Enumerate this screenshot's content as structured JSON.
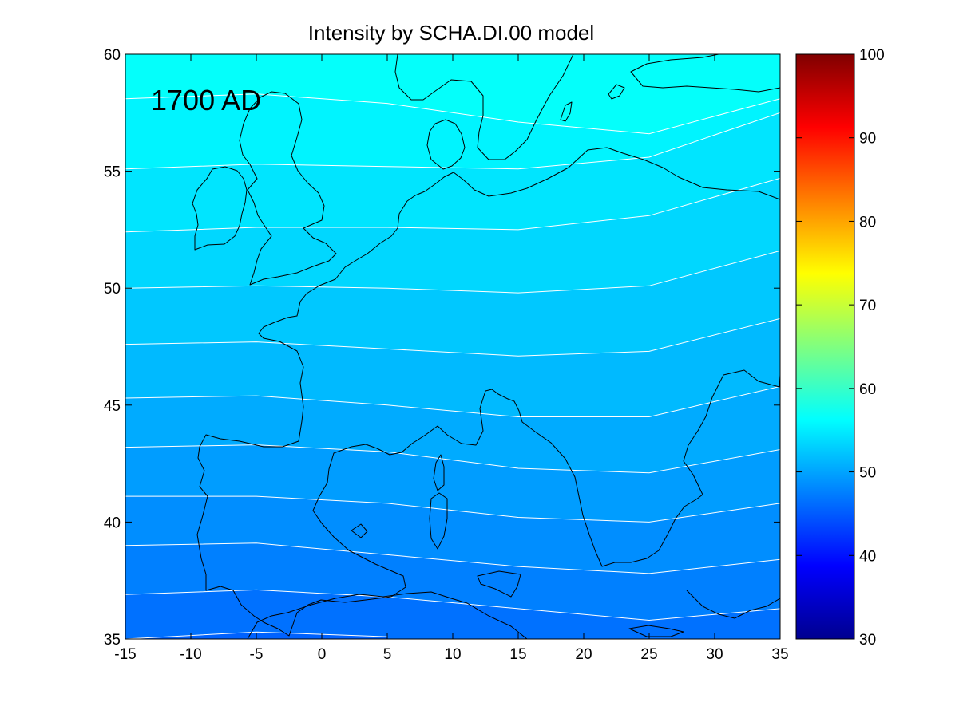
{
  "chart_data": {
    "type": "heatmap",
    "title": "Intensity by SCHA.DI.00 model",
    "annotation": "1700 AD",
    "xlim": [
      -15,
      35
    ],
    "ylim": [
      35,
      60
    ],
    "x_ticks": [
      "-15",
      "-10",
      "-5",
      "0",
      "5",
      "10",
      "15",
      "20",
      "25",
      "30",
      "35"
    ],
    "y_ticks": [
      "35",
      "40",
      "45",
      "50",
      "55",
      "60"
    ],
    "colorbar": {
      "colormap": "jet",
      "clim": [
        30,
        100
      ],
      "ticks": [
        "30",
        "40",
        "50",
        "60",
        "70",
        "80",
        "90",
        "100"
      ]
    },
    "contour_color": "#ffffff",
    "coastline_color": "#000000",
    "contours": [
      {
        "value": 56,
        "points": [
          [
            -15,
            58.1
          ],
          [
            -5,
            58.3
          ],
          [
            5,
            57.9
          ],
          [
            15,
            57.1
          ],
          [
            25,
            56.6
          ],
          [
            35,
            58.1
          ]
        ]
      },
      {
        "value": 55,
        "points": [
          [
            -15,
            55.1
          ],
          [
            -5,
            55.3
          ],
          [
            5,
            55.2
          ],
          [
            15,
            55.1
          ],
          [
            25,
            55.6
          ],
          [
            35,
            57.5
          ]
        ]
      },
      {
        "value": 54,
        "points": [
          [
            -15,
            52.4
          ],
          [
            -5,
            52.6
          ],
          [
            5,
            52.6
          ],
          [
            15,
            52.5
          ],
          [
            25,
            53.1
          ],
          [
            35,
            54.7
          ]
        ]
      },
      {
        "value": 53,
        "points": [
          [
            -15,
            50.0
          ],
          [
            -5,
            50.1
          ],
          [
            5,
            50.0
          ],
          [
            15,
            49.8
          ],
          [
            25,
            50.1
          ],
          [
            35,
            51.6
          ]
        ]
      },
      {
        "value": 52,
        "points": [
          [
            -15,
            47.6
          ],
          [
            -5,
            47.7
          ],
          [
            5,
            47.4
          ],
          [
            15,
            47.1
          ],
          [
            25,
            47.3
          ],
          [
            35,
            48.7
          ]
        ]
      },
      {
        "value": 51,
        "points": [
          [
            -15,
            45.3
          ],
          [
            -5,
            45.4
          ],
          [
            5,
            45.0
          ],
          [
            15,
            44.5
          ],
          [
            25,
            44.5
          ],
          [
            35,
            45.8
          ]
        ]
      },
      {
        "value": 50,
        "points": [
          [
            -15,
            43.2
          ],
          [
            -5,
            43.3
          ],
          [
            5,
            43.0
          ],
          [
            15,
            42.3
          ],
          [
            25,
            42.1
          ],
          [
            35,
            43.1
          ]
        ]
      },
      {
        "value": 49,
        "points": [
          [
            -15,
            41.1
          ],
          [
            -5,
            41.1
          ],
          [
            5,
            40.8
          ],
          [
            15,
            40.2
          ],
          [
            25,
            40.0
          ],
          [
            35,
            40.8
          ]
        ]
      },
      {
        "value": 48,
        "points": [
          [
            -15,
            39.0
          ],
          [
            -5,
            39.1
          ],
          [
            5,
            38.6
          ],
          [
            15,
            38.1
          ],
          [
            25,
            37.8
          ],
          [
            35,
            38.4
          ]
        ]
      },
      {
        "value": 47,
        "points": [
          [
            -15,
            36.9
          ],
          [
            -5,
            37.1
          ],
          [
            5,
            36.8
          ],
          [
            15,
            36.3
          ],
          [
            25,
            35.8
          ],
          [
            35,
            36.3
          ]
        ]
      },
      {
        "value": 46,
        "points": [
          [
            -15,
            35.0
          ],
          [
            -5,
            35.3
          ],
          [
            5,
            35.1
          ]
        ]
      }
    ]
  }
}
